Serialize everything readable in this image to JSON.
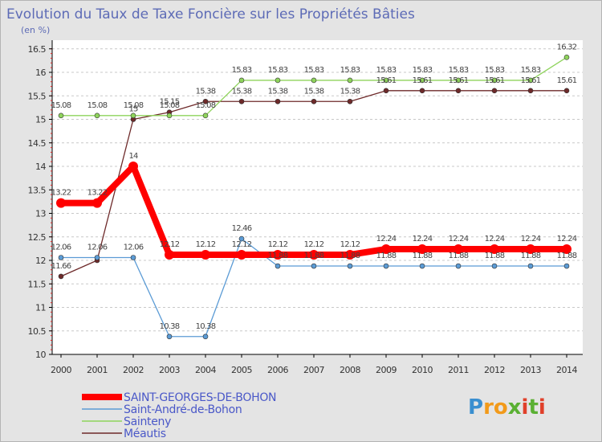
{
  "chart_data": {
    "type": "line",
    "title": "Evolution du Taux de Taxe Foncière sur les Propriétés Bâties",
    "ylabel": "(en %)",
    "xlabel": "",
    "ylim": [
      10,
      16.5
    ],
    "yticks": [
      "10",
      "10.5",
      "11",
      "11.5",
      "12",
      "12.5",
      "13",
      "13.5",
      "14",
      "14.5",
      "15",
      "15.5",
      "16",
      "16.5"
    ],
    "categories": [
      "2000",
      "2001",
      "2002",
      "2003",
      "2004",
      "2005",
      "2006",
      "2007",
      "2008",
      "2009",
      "2010",
      "2011",
      "2012",
      "2013",
      "2014"
    ],
    "series": [
      {
        "name": "Méautis",
        "color": "#6e2a2a",
        "values": [
          11.66,
          12.0,
          15.0,
          15.15,
          15.38,
          15.38,
          15.38,
          15.38,
          15.38,
          15.61,
          15.61,
          15.61,
          15.61,
          15.61,
          15.61
        ],
        "labels": [
          "11.66",
          "",
          "15",
          "15.15",
          "15.38",
          "15.38",
          "15.38",
          "15.38",
          "15.38",
          "15.61",
          "15.61",
          "15.61",
          "15.61",
          "15.61",
          "15.61"
        ]
      },
      {
        "name": "Sainteny",
        "color": "#8fd45c",
        "values": [
          15.08,
          15.08,
          15.08,
          15.08,
          15.08,
          15.83,
          15.83,
          15.83,
          15.83,
          15.83,
          15.83,
          15.83,
          15.83,
          15.83,
          16.32
        ],
        "labels": [
          "15.08",
          "15.08",
          "15.08",
          "15.08",
          "15.08",
          "15.83",
          "15.83",
          "15.83",
          "15.83",
          "15.83",
          "15.83",
          "15.83",
          "15.83",
          "15.83",
          "16.32"
        ]
      },
      {
        "name": "Saint-André-de-Bohon",
        "color": "#5b9bd5",
        "values": [
          12.06,
          12.06,
          12.06,
          10.38,
          10.38,
          12.46,
          11.88,
          11.88,
          11.88,
          11.88,
          11.88,
          11.88,
          11.88,
          11.88,
          11.88
        ],
        "labels": [
          "12.06",
          "12.06",
          "12.06",
          "10.38",
          "10.38",
          "12.46",
          "11.88",
          "11.88",
          "11.88",
          "11.88",
          "11.88",
          "11.88",
          "11.88",
          "11.88",
          "11.88"
        ]
      },
      {
        "name": "SAINT-GEORGES-DE-BOHON",
        "color": "#ff0000",
        "values": [
          13.22,
          13.22,
          14.0,
          12.12,
          12.12,
          12.12,
          12.12,
          12.12,
          12.12,
          12.24,
          12.24,
          12.24,
          12.24,
          12.24,
          12.24
        ],
        "labels": [
          "13.22",
          "13.22",
          "14",
          "12.12",
          "12.12",
          "12.12",
          "12.12",
          "12.12",
          "12.12",
          "12.24",
          "12.24",
          "12.24",
          "12.24",
          "12.24",
          "12.24"
        ]
      }
    ],
    "legend_order": [
      "SAINT-GEORGES-DE-BOHON",
      "Saint-André-de-Bohon",
      "Sainteny",
      "Méautis"
    ],
    "legend_position": "bottom-left",
    "grid": "horizontal-dashed"
  },
  "logo": {
    "text": "Proxiti",
    "letters": [
      {
        "ch": "P",
        "color": "#3a8fd0"
      },
      {
        "ch": "r",
        "color": "#f29a1a"
      },
      {
        "ch": "o",
        "color": "#f29a1a"
      },
      {
        "ch": "x",
        "color": "#5ab033"
      },
      {
        "ch": "i",
        "color": "#e0402a"
      },
      {
        "ch": "t",
        "color": "#5ab033"
      },
      {
        "ch": "i",
        "color": "#e0402a"
      }
    ]
  }
}
